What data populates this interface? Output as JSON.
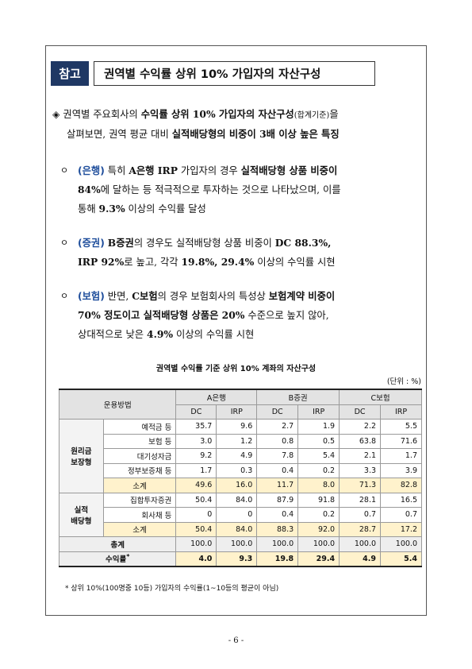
{
  "header": {
    "tag": "참고",
    "title": "권역별 수익률 상위 10% 가입자의 자산구성"
  },
  "intro": {
    "marker": "◈",
    "l1_a": "권역별 주요회사의 ",
    "l1_b": "수익률 상위 10% 가입자의 자산구성",
    "l1_c": "(합계기준)",
    "l1_d": "을",
    "l2_a": "살펴보면, 권역 평균 대비 ",
    "l2_b": "실적배당형의 비중이 3배 이상 높은 특징"
  },
  "bullets": [
    {
      "marker": "ㅇ",
      "tag": "(은행)",
      "l1_a": " 특히 ",
      "l1_b": "A은행 IRP",
      "l1_c": " 가입자의 경우 ",
      "l1_d": "실적배당형 상품 비중이",
      "l2_a": "84%",
      "l2_b": "에 달하는 등 적극적으로 투자하는 것으로 나타났으며, 이를",
      "l3_a": "통해 ",
      "l3_b": "9.3%",
      "l3_c": " 이상의 수익률 달성"
    },
    {
      "marker": "ㅇ",
      "tag": "(증권)",
      "l1_a": " ",
      "l1_b": "B증권",
      "l1_c": "의 경우도 실적배당형 상품 비중이 ",
      "l1_d": "DC 88.3%,",
      "l2_a": "IRP 92%",
      "l2_b": "로 높고, 각각 ",
      "l2_c": "19.8%, 29.4%",
      "l2_d": " 이상의 수익률 시현"
    },
    {
      "marker": "ㅇ",
      "tag": "(보험)",
      "l1_a": " 반면, ",
      "l1_b": "C보험",
      "l1_c": "의 경우 보험회사의 특성상 ",
      "l1_d": "보험계약 비중이",
      "l2_a": "70% 정도이고 실적배당형 상품은 20%",
      "l2_b": " 수준으로 높지 않아,",
      "l3_a": "상대적으로 낮은 ",
      "l3_b": "4.9%",
      "l3_c": " 이상의 수익률 시현"
    }
  ],
  "table": {
    "caption": "권역별 수익률 기준 상위 10% 계좌의 자산구성",
    "unit": "(단위 : %)",
    "header": {
      "method": "운용방법",
      "groups": [
        "A은행",
        "B증권",
        "C보험"
      ],
      "cols": [
        "DC",
        "IRP",
        "DC",
        "IRP",
        "DC",
        "IRP"
      ]
    },
    "sections": [
      {
        "name_l1": "원리금",
        "name_l2": "보장형",
        "rows": [
          {
            "label": "예적금 등",
            "values": [
              "35.7",
              "9.6",
              "2.7",
              "1.9",
              "2.2",
              "5.5"
            ]
          },
          {
            "label": "보험 등",
            "values": [
              "3.0",
              "1.2",
              "0.8",
              "0.5",
              "63.8",
              "71.6"
            ]
          },
          {
            "label": "대기성자금",
            "values": [
              "9.2",
              "4.9",
              "7.8",
              "5.4",
              "2.1",
              "1.7"
            ]
          },
          {
            "label": "정부보증채 등",
            "values": [
              "1.7",
              "0.3",
              "0.4",
              "0.2",
              "3.3",
              "3.9"
            ]
          }
        ],
        "subtotal": {
          "label": "소계",
          "values": [
            "49.6",
            "16.0",
            "11.7",
            "8.0",
            "71.3",
            "82.8"
          ]
        }
      },
      {
        "name_l1": "실적",
        "name_l2": "배당형",
        "rows": [
          {
            "label": "집합투자증권",
            "values": [
              "50.4",
              "84.0",
              "87.9",
              "91.8",
              "28.1",
              "16.5"
            ]
          },
          {
            "label": "회사채 등",
            "values": [
              "0",
              "0",
              "0.4",
              "0.2",
              "0.7",
              "0.7"
            ]
          }
        ],
        "subtotal": {
          "label": "소계",
          "values": [
            "50.4",
            "84.0",
            "88.3",
            "92.0",
            "28.7",
            "17.2"
          ]
        }
      }
    ],
    "total": {
      "label": "총계",
      "values": [
        "100.0",
        "100.0",
        "100.0",
        "100.0",
        "100.0",
        "100.0"
      ]
    },
    "yield": {
      "label": "수익률",
      "mark": "*",
      "values": [
        "4.0",
        "9.3",
        "19.8",
        "29.4",
        "4.9",
        "5.4"
      ]
    }
  },
  "footnote": "* 상위 10%(100명중 10등) 가입자의 수익률(1~10등의 평균이 아님)",
  "page_number": "- 6 -"
}
